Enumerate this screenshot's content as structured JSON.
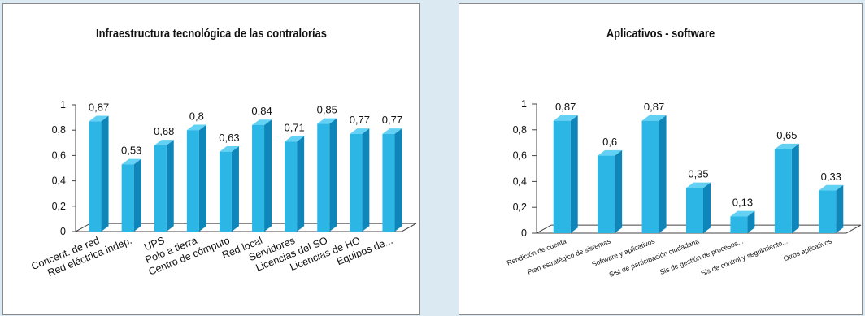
{
  "chart_data": [
    {
      "type": "bar",
      "title": "Infraestructura tecnológica de las contralorías",
      "categories": [
        "Concent. de red",
        "Red eléctrica indep.",
        "UPS",
        "Polo a tierra",
        "Centro de cómputo",
        "Red local",
        "Servidores",
        "Licencias del SO",
        "Licencias de HO",
        "Equipos de..."
      ],
      "values": [
        0.87,
        0.53,
        0.68,
        0.8,
        0.63,
        0.84,
        0.71,
        0.85,
        0.77,
        0.77
      ],
      "value_labels": [
        "0,87",
        "0,53",
        "0,68",
        "0,8",
        "0,63",
        "0,84",
        "0,71",
        "0,85",
        "0,77",
        "0,77"
      ],
      "ylim": [
        0,
        1
      ],
      "y_ticks": [
        "0",
        "0,2",
        "0,4",
        "0,6",
        "0,8",
        "1"
      ],
      "grid": false,
      "legend": "none",
      "style": "3d-column"
    },
    {
      "type": "bar",
      "title": "Aplicativos - software",
      "categories": [
        "Rendición de cuenta",
        "Plan estratégico de sistemas",
        "Software y aplicativos",
        "Sist de participación ciudadana",
        "Sis de gestión de procesos...",
        "Sis de control y seguimiento...",
        "Otros aplicativos"
      ],
      "values": [
        0.87,
        0.6,
        0.87,
        0.35,
        0.13,
        0.65,
        0.33
      ],
      "value_labels": [
        "0,87",
        "0,6",
        "0,87",
        "0,35",
        "0,13",
        "0,65",
        "0,33"
      ],
      "ylim": [
        0,
        1
      ],
      "y_ticks": [
        "0",
        "0,2",
        "0,4",
        "0,6",
        "0,8",
        "1"
      ],
      "grid": false,
      "legend": "none",
      "style": "3d-column"
    }
  ],
  "colors": {
    "bar_front": "#2cb6e6",
    "bar_side": "#0f86b9",
    "bar_top": "#63d1f3",
    "axis": "#444444"
  }
}
